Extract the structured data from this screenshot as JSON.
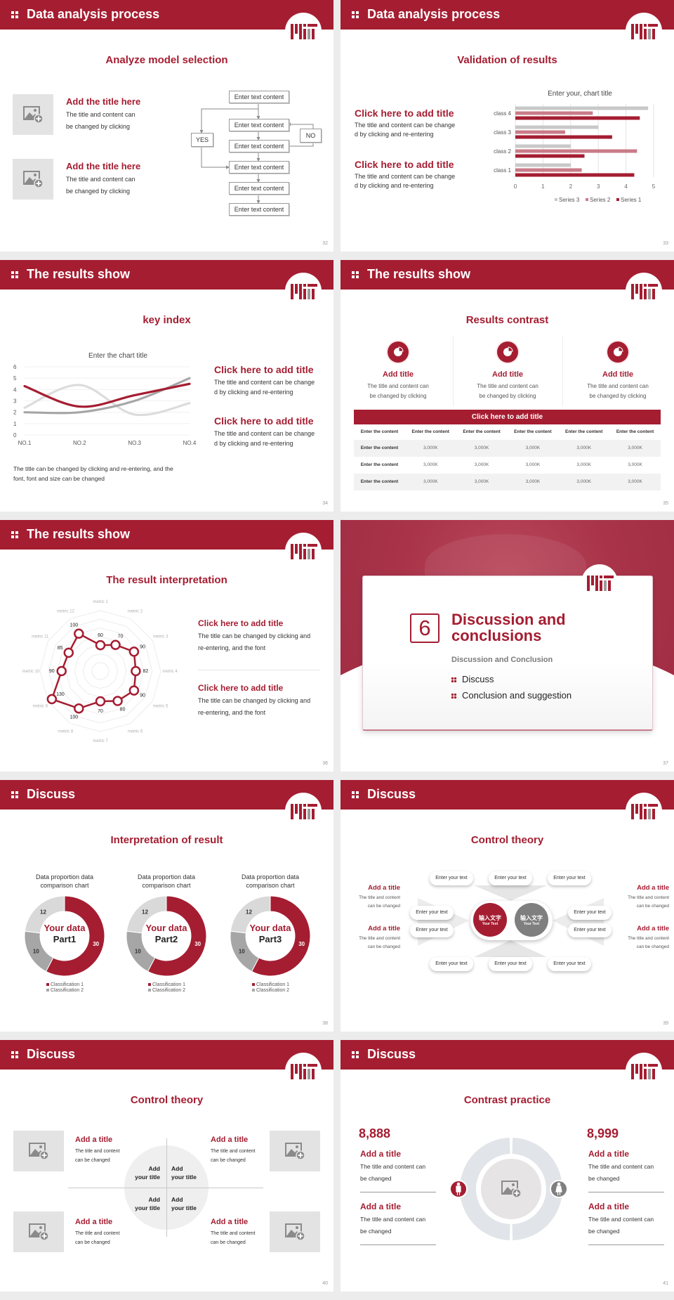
{
  "theme": {
    "accent": "#a51d31",
    "gray": "#8c8c8c",
    "light_gray": "#d9d9d9",
    "pink": "#c97a87"
  },
  "slides": [
    {
      "header": "Data analysis process",
      "page": "32",
      "subtitle": "Analyze model selection",
      "items": [
        {
          "title": "Add the title here",
          "body": [
            "The title and content can",
            "be changed by clicking"
          ]
        },
        {
          "title": "Add the title here",
          "body": [
            "The title and content can",
            "be changed by clicking"
          ]
        }
      ],
      "flow": {
        "boxes": [
          "Enter text content",
          "Enter text content",
          "Enter text content",
          "Enter text content",
          "Enter text content",
          "Enter text content"
        ],
        "yes": "YES",
        "no": "NO"
      }
    },
    {
      "header": "Data analysis process",
      "page": "33",
      "subtitle": "Validation of results",
      "items": [
        {
          "title": "Click here to add title",
          "body": [
            "The title and content can be change",
            "d by clicking and re-entering"
          ]
        },
        {
          "title": "Click here to add title",
          "body": [
            "The title and content can be change",
            "d by clicking and re-entering"
          ]
        }
      ]
    },
    {
      "header": "The results show",
      "page": "34",
      "subtitle": "key index",
      "items": [
        {
          "title": "Click here to add title",
          "body": [
            "The title and content can be change",
            "d by clicking and re-entering"
          ]
        },
        {
          "title": "Click here to add title",
          "body": [
            "The title and content can be change",
            "d by clicking and re-entering"
          ]
        }
      ],
      "note": [
        "The title can be changed by clicking and re-entering, and the",
        "font, font and size can be changed"
      ]
    },
    {
      "header": "The results show",
      "page": "35",
      "subtitle": "Results contrast",
      "columns": [
        {
          "title": "Add title",
          "body": [
            "The title and content can",
            "be changed by clicking"
          ]
        },
        {
          "title": "Add title",
          "body": [
            "The title and content can",
            "be changed by clicking"
          ]
        },
        {
          "title": "Add title",
          "body": [
            "The title and content can",
            "be changed by clicking"
          ]
        }
      ],
      "table": {
        "title": "Click here to add title",
        "header": [
          "Enter the content",
          "Enter the content",
          "Enter the content",
          "Enter the content",
          "Enter the content",
          "Enter the content"
        ],
        "rows": [
          [
            "Enter the content",
            "3,000K",
            "3,000K",
            "3,000K",
            "3,000K",
            "3,000K"
          ],
          [
            "Enter the content",
            "3,000K",
            "3,000K",
            "3,000K",
            "3,000K",
            "3,000K"
          ],
          [
            "Enter the content",
            "3,000K",
            "3,000K",
            "3,000K",
            "3,000K",
            "3,000K"
          ]
        ]
      }
    },
    {
      "header": "The results show",
      "page": "36",
      "subtitle": "The result interpretation",
      "items": [
        {
          "title": "Click here to add  title",
          "body": [
            "The title can be changed by clicking and",
            "re-entering, and the font"
          ]
        },
        {
          "title": "Click here to add  title",
          "body": [
            "The title can be changed by clicking and",
            "re-entering, and the font"
          ]
        }
      ]
    },
    {
      "page": "37",
      "number": "6",
      "title": [
        "Discussion and",
        "conclusions"
      ],
      "subtitle": "Discussion and Conclusion",
      "bullets": [
        "Discuss",
        "Conclusion and suggestion"
      ]
    },
    {
      "header": "Discuss",
      "page": "38",
      "subtitle": "Interpretation of result"
    },
    {
      "header": "Discuss",
      "page": "39",
      "subtitle": "Control theory",
      "center": [
        {
          "cn": "输入文字",
          "en": "Your Text"
        },
        {
          "cn": "输入文字",
          "en": "Your Text"
        }
      ],
      "pills": {
        "top": [
          "Enter your text",
          "Enter your text",
          "Enter your text"
        ],
        "left": [
          "Enter your text",
          "Enter your text"
        ],
        "right": [
          "Enter your text",
          "Enter your text"
        ],
        "bottom": [
          "Enter your text",
          "Enter your text",
          "Enter your text"
        ]
      },
      "side": {
        "left": [
          {
            "title": "Add a title",
            "body": [
              "The title and content",
              "can be changed"
            ]
          },
          {
            "title": "Add a title",
            "body": [
              "The title and content",
              "can be changed"
            ]
          }
        ],
        "right": [
          {
            "title": "Add a title",
            "body": [
              "The title and content",
              "can be changed"
            ]
          },
          {
            "title": "Add a title",
            "body": [
              "The title and content",
              "can be changed"
            ]
          }
        ]
      }
    },
    {
      "header": "Discuss",
      "page": "40",
      "subtitle": "Control theory",
      "quadrants": [
        [
          "Add",
          "your title"
        ],
        [
          "Add",
          "your title"
        ],
        [
          "Add",
          "your title"
        ],
        [
          "Add",
          "your title"
        ]
      ],
      "items": [
        {
          "title": "Add a title",
          "body": [
            "The title and content",
            "can be changed"
          ]
        },
        {
          "title": "Add a title",
          "body": [
            "The title and content",
            "can be changed"
          ]
        },
        {
          "title": "Add a title",
          "body": [
            "The title and content",
            "can be changed"
          ]
        },
        {
          "title": "Add a title",
          "body": [
            "The title and content",
            "can be changed"
          ]
        }
      ]
    },
    {
      "header": "Discuss",
      "page": "41",
      "subtitle": "Contrast practice",
      "left": {
        "number": "8,888",
        "icon": "male-icon",
        "items": [
          {
            "title": "Add a title",
            "body": [
              "The title and content can",
              "be changed"
            ]
          },
          {
            "title": "Add a title",
            "body": [
              "The title and content can",
              "be changed"
            ]
          }
        ]
      },
      "right": {
        "number": "8,999",
        "icon": "female-icon",
        "items": [
          {
            "title": "Add a title",
            "body": [
              "The title and content can",
              "be changed"
            ]
          },
          {
            "title": "Add a title",
            "body": [
              "The title and content can",
              "be changed"
            ]
          }
        ]
      }
    }
  ],
  "chart_data": [
    {
      "type": "bar",
      "orientation": "horizontal",
      "title": "Enter your, chart title",
      "categories": [
        "class 1",
        "class 2",
        "class 3",
        "class 4"
      ],
      "series": [
        {
          "name": "Series 1",
          "values": [
            4.3,
            2.5,
            3.5,
            4.5
          ],
          "color": "#a51d31"
        },
        {
          "name": "Series 2",
          "values": [
            2.4,
            4.4,
            1.8,
            2.8
          ],
          "color": "#c97a87"
        },
        {
          "name": "Series 3",
          "values": [
            2,
            2,
            3,
            4.8
          ],
          "color": "#c8c8c8"
        }
      ],
      "xlim": [
        0,
        5
      ],
      "xticks": [
        0,
        1,
        2,
        3,
        4,
        5
      ],
      "grid": true,
      "legend": "bottom"
    },
    {
      "type": "line",
      "smooth": true,
      "title": "Enter the chart title",
      "categories": [
        "NO.1",
        "NO.2",
        "NO.3",
        "NO.4"
      ],
      "series": [
        {
          "values": [
            4.3,
            2.5,
            3.5,
            4.5
          ],
          "color": "#a51d31"
        },
        {
          "values": [
            2.4,
            4.4,
            1.8,
            2.8
          ],
          "color": "#dcdcdc"
        },
        {
          "values": [
            2,
            2,
            3,
            5
          ],
          "color": "#a6a6a6"
        }
      ],
      "ylim": [
        0,
        6
      ],
      "yticks": [
        0,
        1,
        2,
        3,
        4,
        5,
        6
      ],
      "grid": true
    },
    {
      "type": "radar",
      "categories": [
        "metric 1",
        "metric 2",
        "metric 3",
        "metric 4",
        "metric 5",
        "metric 6",
        "metric 7",
        "metric 8",
        "metric 9",
        "metric 10",
        "metric 11",
        "metric 12"
      ],
      "values": [
        60,
        70,
        90,
        82,
        90,
        80,
        70,
        100,
        130,
        90,
        85,
        100
      ],
      "rlim": [
        0,
        140
      ],
      "color": "#a51d31"
    },
    {
      "type": "pie",
      "donut": true,
      "title": [
        "Data proportion data",
        "comparison chart"
      ],
      "center_label": [
        "Your data",
        "Part1"
      ],
      "values": [
        30,
        10,
        12
      ],
      "labels": [
        "30",
        "10",
        "12"
      ],
      "colors": [
        "#a51d31",
        "#a6a6a6",
        "#d9d9d9"
      ],
      "legend": [
        "Classification 1",
        "Classification 2"
      ]
    },
    {
      "type": "pie",
      "donut": true,
      "title": [
        "Data proportion data",
        "comparison chart"
      ],
      "center_label": [
        "Your data",
        "Part2"
      ],
      "values": [
        30,
        10,
        12
      ],
      "labels": [
        "30",
        "10",
        "12"
      ],
      "colors": [
        "#a51d31",
        "#a6a6a6",
        "#d9d9d9"
      ],
      "legend": [
        "Classification 1",
        "Classification 2"
      ]
    },
    {
      "type": "pie",
      "donut": true,
      "title": [
        "Data proportion data",
        "comparison chart"
      ],
      "center_label": [
        "Your data",
        "Part3"
      ],
      "values": [
        30,
        10,
        12
      ],
      "labels": [
        "30",
        "10",
        "12"
      ],
      "colors": [
        "#a51d31",
        "#a6a6a6",
        "#d9d9d9"
      ],
      "legend": [
        "Classification 1",
        "Classification 2"
      ]
    }
  ]
}
